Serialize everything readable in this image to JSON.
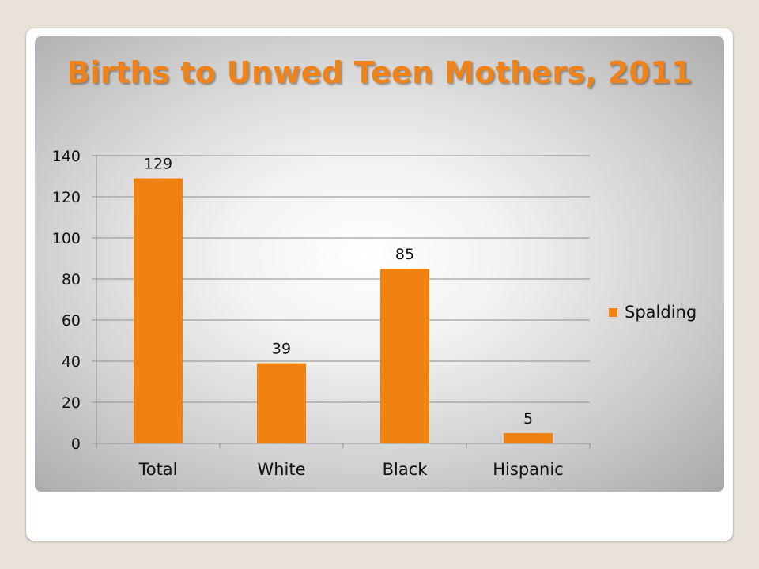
{
  "chart_data": {
    "type": "bar",
    "title": "Births to Unwed Teen Mothers, 2011",
    "categories": [
      "Total",
      "White",
      "Black",
      "Hispanic"
    ],
    "series": [
      {
        "name": "Spalding",
        "values": [
          129,
          39,
          85,
          5
        ],
        "color": "#f0820f"
      }
    ],
    "ylim": [
      0,
      140
    ],
    "yticks": [
      0,
      20,
      40,
      60,
      80,
      100,
      120,
      140
    ],
    "grid": true,
    "legend": "right"
  }
}
